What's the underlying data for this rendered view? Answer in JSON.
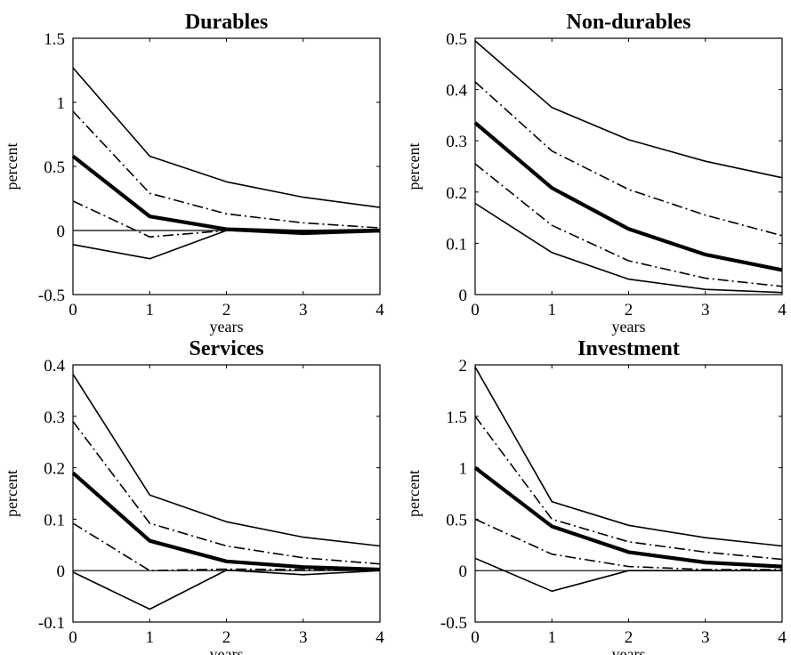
{
  "chart_data": [
    {
      "type": "line",
      "title": "Durables",
      "xlabel": "years",
      "ylabel": "percent",
      "x": [
        0,
        1,
        2,
        3,
        4
      ],
      "xticks": [
        "0",
        "1",
        "2",
        "3",
        "4"
      ],
      "yticks": [
        "-0.5",
        "0",
        "0.5",
        "1",
        "1.5"
      ],
      "ytick_values": [
        -0.5,
        0,
        0.5,
        1,
        1.5
      ],
      "xlim": [
        0,
        4
      ],
      "ylim": [
        -0.5,
        1.5
      ],
      "zero_line": true,
      "series": [
        {
          "style": "upper-band",
          "values": [
            1.27,
            0.58,
            0.38,
            0.26,
            0.18
          ]
        },
        {
          "style": "upper-inner-band",
          "values": [
            0.93,
            0.29,
            0.13,
            0.06,
            0.02
          ]
        },
        {
          "style": "point-estimate",
          "values": [
            0.58,
            0.11,
            0.01,
            -0.01,
            0.0
          ]
        },
        {
          "style": "lower-inner-band",
          "values": [
            0.23,
            -0.05,
            0.0,
            -0.02,
            -0.01
          ]
        },
        {
          "style": "lower-band",
          "values": [
            -0.11,
            -0.22,
            0.0,
            -0.03,
            -0.01
          ]
        }
      ]
    },
    {
      "type": "line",
      "title": "Non-durables",
      "xlabel": "years",
      "ylabel": "percent",
      "x": [
        0,
        1,
        2,
        3,
        4
      ],
      "xticks": [
        "0",
        "1",
        "2",
        "3",
        "4"
      ],
      "yticks": [
        "0",
        "0.1",
        "0.2",
        "0.3",
        "0.4",
        "0.5"
      ],
      "ytick_values": [
        0,
        0.1,
        0.2,
        0.3,
        0.4,
        0.5
      ],
      "xlim": [
        0,
        4
      ],
      "ylim": [
        0,
        0.5
      ],
      "zero_line": false,
      "series": [
        {
          "style": "upper-band",
          "values": [
            0.495,
            0.365,
            0.302,
            0.26,
            0.228
          ]
        },
        {
          "style": "upper-inner-band",
          "values": [
            0.415,
            0.28,
            0.205,
            0.155,
            0.115
          ]
        },
        {
          "style": "point-estimate",
          "values": [
            0.335,
            0.208,
            0.128,
            0.078,
            0.048
          ]
        },
        {
          "style": "lower-inner-band",
          "values": [
            0.255,
            0.135,
            0.066,
            0.032,
            0.016
          ]
        },
        {
          "style": "lower-band",
          "values": [
            0.178,
            0.082,
            0.03,
            0.01,
            0.004
          ]
        }
      ]
    },
    {
      "type": "line",
      "title": "Services",
      "xlabel": "years",
      "ylabel": "percent",
      "x": [
        0,
        1,
        2,
        3,
        4
      ],
      "xticks": [
        "0",
        "1",
        "2",
        "3",
        "4"
      ],
      "yticks": [
        "-0.1",
        "0",
        "0.1",
        "0.2",
        "0.3",
        "0.4"
      ],
      "ytick_values": [
        -0.1,
        0,
        0.1,
        0.2,
        0.3,
        0.4
      ],
      "xlim": [
        0,
        4
      ],
      "ylim": [
        -0.1,
        0.4
      ],
      "zero_line": true,
      "series": [
        {
          "style": "upper-band",
          "values": [
            0.382,
            0.147,
            0.095,
            0.065,
            0.048
          ]
        },
        {
          "style": "upper-inner-band",
          "values": [
            0.29,
            0.092,
            0.048,
            0.025,
            0.013
          ]
        },
        {
          "style": "point-estimate",
          "values": [
            0.19,
            0.058,
            0.018,
            0.007,
            0.002
          ]
        },
        {
          "style": "lower-inner-band",
          "values": [
            0.092,
            0.0,
            0.003,
            0.002,
            0.001
          ]
        },
        {
          "style": "lower-band",
          "values": [
            -0.003,
            -0.075,
            0.001,
            -0.008,
            0.0
          ]
        }
      ]
    },
    {
      "type": "line",
      "title": "Investment",
      "xlabel": "years",
      "ylabel": "percent",
      "x": [
        0,
        1,
        2,
        3,
        4
      ],
      "xticks": [
        "0",
        "1",
        "2",
        "3",
        "4"
      ],
      "yticks": [
        "-0.5",
        "0",
        "0.5",
        "1",
        "1.5",
        "2"
      ],
      "ytick_values": [
        -0.5,
        0,
        0.5,
        1,
        1.5,
        2
      ],
      "xlim": [
        0,
        4
      ],
      "ylim": [
        -0.5,
        2
      ],
      "zero_line": true,
      "series": [
        {
          "style": "upper-band",
          "values": [
            1.98,
            0.67,
            0.44,
            0.32,
            0.24
          ]
        },
        {
          "style": "upper-inner-band",
          "values": [
            1.5,
            0.5,
            0.28,
            0.18,
            0.11
          ]
        },
        {
          "style": "point-estimate",
          "values": [
            1.0,
            0.43,
            0.18,
            0.08,
            0.04
          ]
        },
        {
          "style": "lower-inner-band",
          "values": [
            0.5,
            0.16,
            0.04,
            0.01,
            0.01
          ]
        },
        {
          "style": "lower-band",
          "values": [
            0.12,
            -0.2,
            0.0,
            0.0,
            0.0
          ]
        }
      ]
    }
  ]
}
